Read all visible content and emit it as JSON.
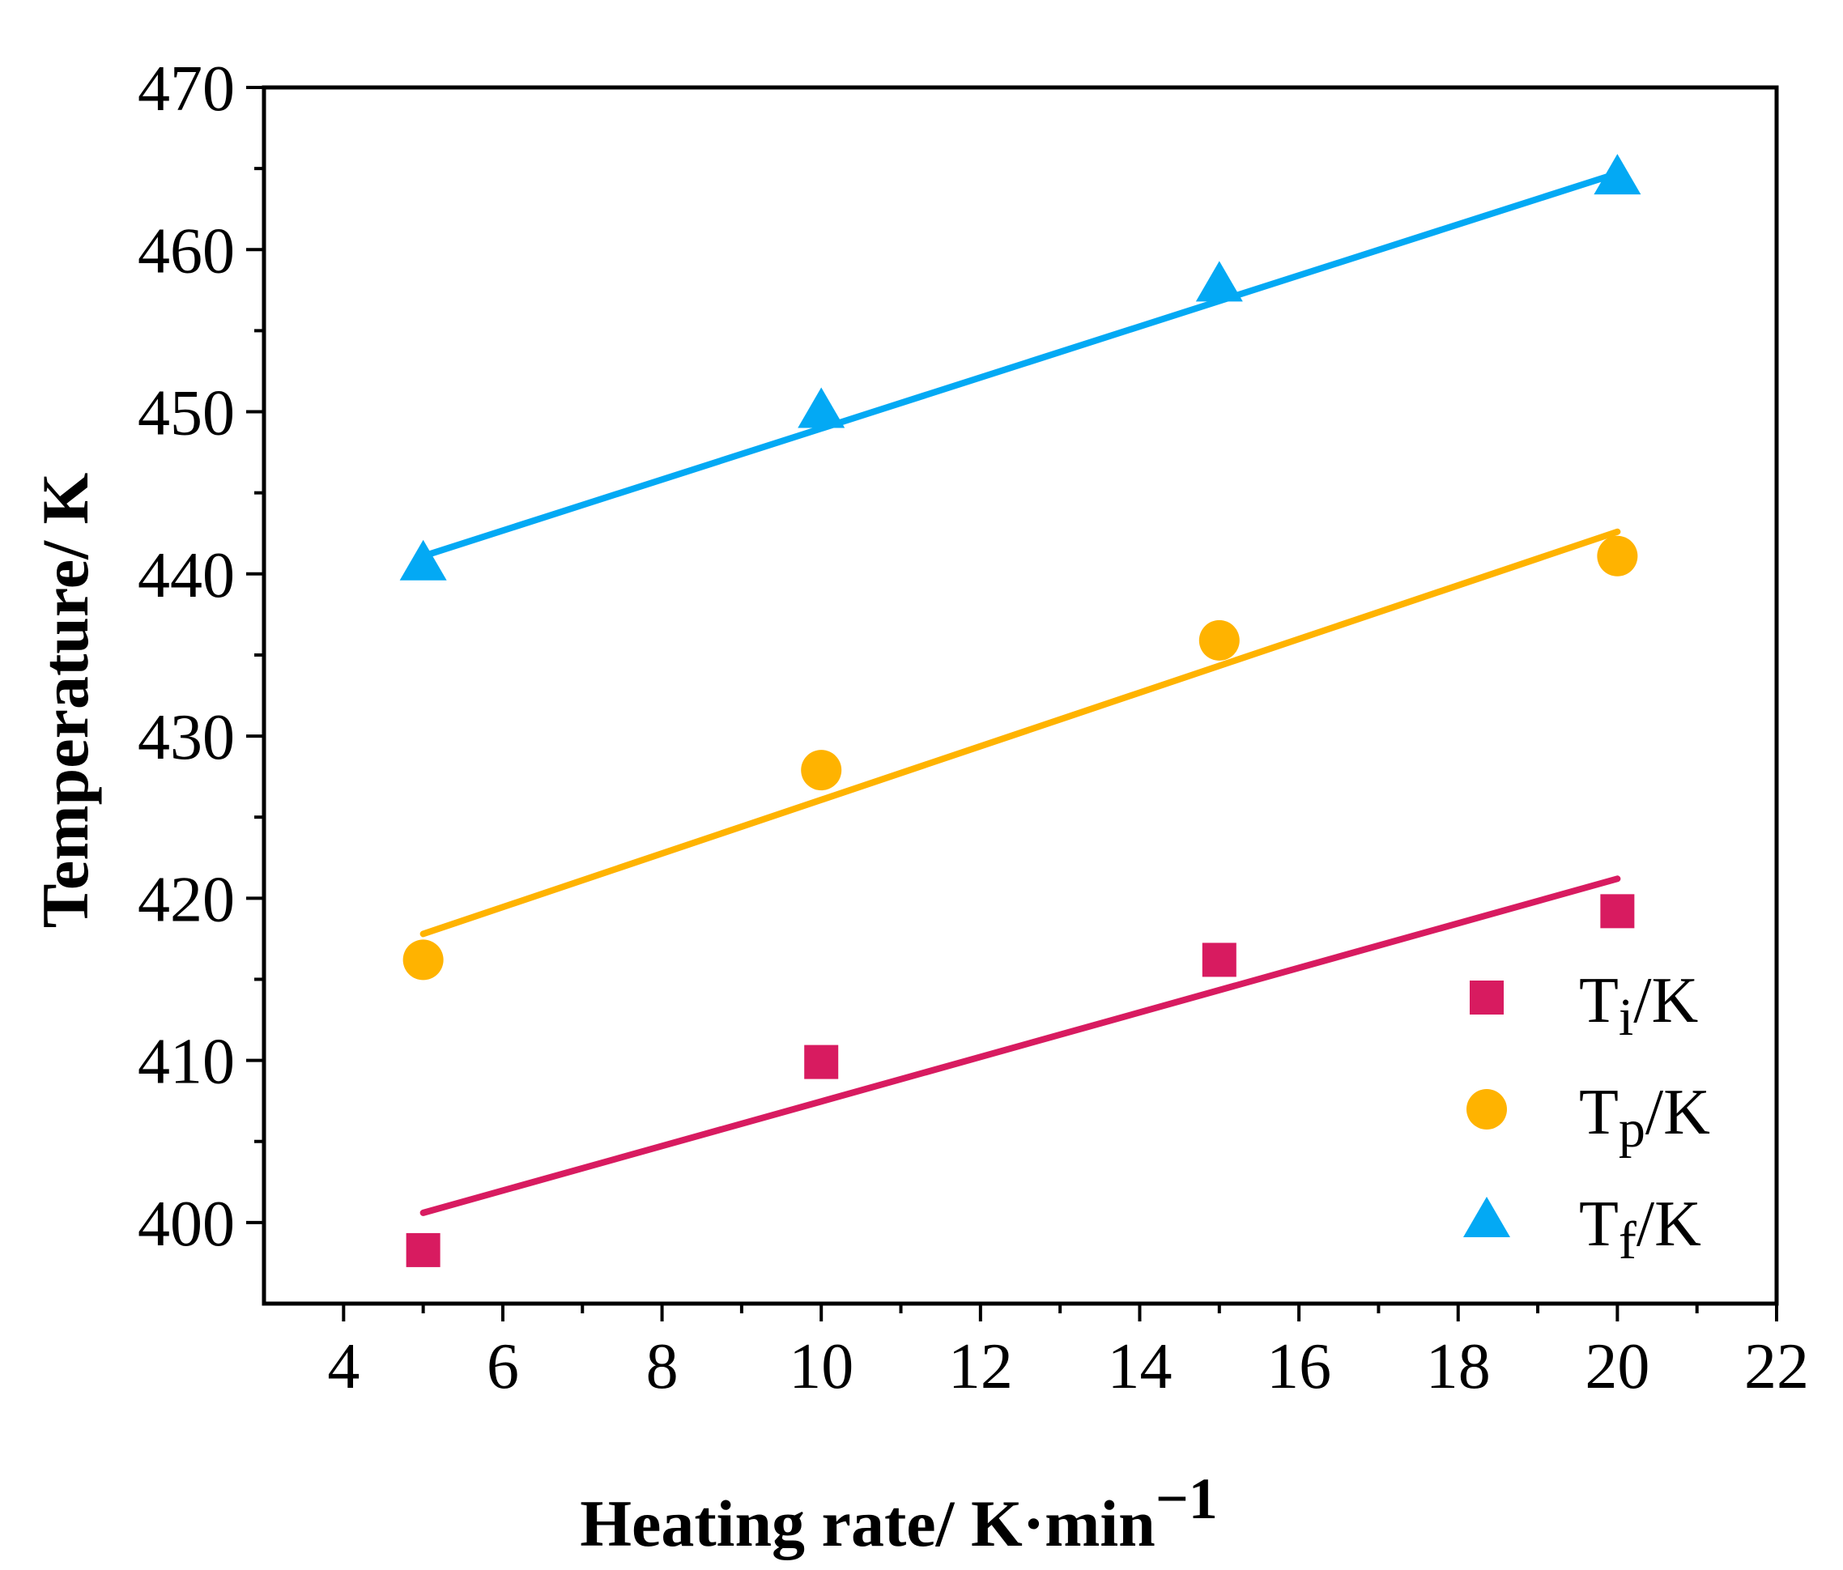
{
  "chart_data": {
    "type": "scatter",
    "xlabel": "Heating rate/ K·min",
    "xlabel_sup": "−1",
    "ylabel": "Temperature/ K",
    "xlim": [
      3,
      22
    ],
    "ylim": [
      395,
      470
    ],
    "xticks": [
      4,
      6,
      8,
      10,
      12,
      14,
      16,
      18,
      20,
      22
    ],
    "yticks": [
      400,
      410,
      420,
      430,
      440,
      450,
      460,
      470
    ],
    "legend_position": "bottom-right",
    "series": [
      {
        "name": "Ti/K",
        "legend_main": "T",
        "legend_sub": "i",
        "legend_tail": "/K",
        "marker": "square",
        "color": "#d81b60",
        "x": [
          5,
          10,
          15,
          20
        ],
        "y": [
          398.3,
          409.9,
          416.2,
          419.2
        ],
        "fit": {
          "x": [
            5,
            20
          ],
          "y": [
            400.6,
            421.2
          ]
        }
      },
      {
        "name": "Tp/K",
        "legend_main": "T",
        "legend_sub": "p",
        "legend_tail": "/K",
        "marker": "circle",
        "color": "#ffb300",
        "x": [
          5,
          10,
          15,
          20
        ],
        "y": [
          416.2,
          427.9,
          435.9,
          441.1
        ],
        "fit": {
          "x": [
            5,
            20
          ],
          "y": [
            417.8,
            442.6
          ]
        }
      },
      {
        "name": "Tf/K",
        "legend_main": "T",
        "legend_sub": "f",
        "legend_tail": "/K",
        "marker": "triangle",
        "color": "#03a9f4",
        "x": [
          5,
          10,
          15,
          20
        ],
        "y": [
          440.6,
          450.0,
          457.8,
          464.4
        ],
        "fit": {
          "x": [
            5,
            20
          ],
          "y": [
            441.1,
            464.7
          ]
        }
      }
    ]
  }
}
